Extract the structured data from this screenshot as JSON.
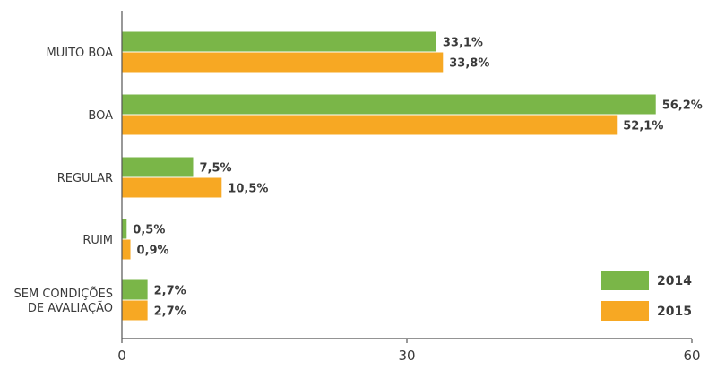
{
  "chart_data": {
    "type": "bar",
    "orientation": "horizontal",
    "categories": [
      [
        "MUITO BOA"
      ],
      [
        "BOA"
      ],
      [
        "REGULAR"
      ],
      [
        "RUIM"
      ],
      [
        "SEM CONDIÇÕES",
        "DE AVALIAÇÃO"
      ]
    ],
    "series": [
      {
        "name": "2014",
        "color": "#7ab648",
        "values": [
          33.1,
          56.2,
          7.5,
          0.5,
          2.7
        ],
        "labels": [
          "33,1%",
          "56,2%",
          "7,5%",
          "0,5%",
          "2,7%"
        ]
      },
      {
        "name": "2015",
        "color": "#f7a823",
        "values": [
          33.8,
          52.1,
          10.5,
          0.9,
          2.7
        ],
        "labels": [
          "33,8%",
          "52,1%",
          "10,5%",
          "0,9%",
          "2,7%"
        ]
      }
    ],
    "xlim": [
      0,
      60
    ],
    "xticks": [
      0,
      30,
      60
    ],
    "xtick_labels": [
      "0",
      "30",
      "60"
    ],
    "grid": false,
    "legend_position": "bottom-right"
  }
}
